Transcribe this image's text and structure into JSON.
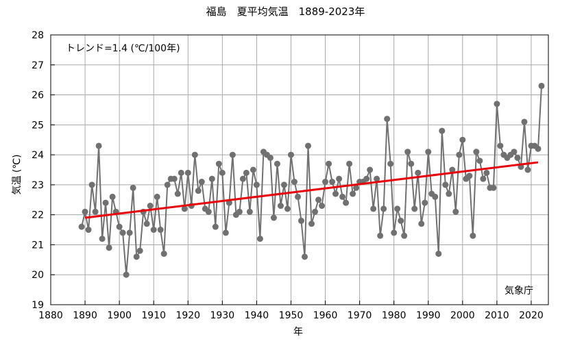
{
  "chart_data": {
    "type": "line",
    "title": "福島　夏平均気温　1889-2023年",
    "xlabel": "年",
    "ylabel": "気温 (℃)",
    "annotation": "トレンド=1.4 (℃/100年)",
    "source": "気象庁",
    "xlim": [
      1880,
      2025
    ],
    "ylim": [
      19,
      28
    ],
    "xticks": [
      1880,
      1890,
      1900,
      1910,
      1920,
      1930,
      1940,
      1950,
      1960,
      1970,
      1980,
      1990,
      2000,
      2010,
      2020
    ],
    "yticks": [
      19,
      20,
      21,
      22,
      23,
      24,
      25,
      26,
      27,
      28
    ],
    "grid": true,
    "series": [
      {
        "color": "#707070",
        "x": [
          1889,
          1890,
          1891,
          1892,
          1893,
          1894,
          1895,
          1896,
          1897,
          1898,
          1899,
          1900,
          1901,
          1902,
          1903,
          1904,
          1905,
          1906,
          1907,
          1908,
          1909,
          1910,
          1911,
          1912,
          1913,
          1914,
          1915,
          1916,
          1917,
          1918,
          1919,
          1920,
          1921,
          1922,
          1923,
          1924,
          1925,
          1926,
          1927,
          1928,
          1929,
          1930,
          1931,
          1932,
          1933,
          1934,
          1935,
          1936,
          1937,
          1938,
          1939,
          1940,
          1941,
          1942,
          1943,
          1944,
          1945,
          1946,
          1947,
          1948,
          1949,
          1950,
          1951,
          1952,
          1953,
          1954,
          1955,
          1956,
          1957,
          1958,
          1959,
          1960,
          1961,
          1962,
          1963,
          1964,
          1965,
          1966,
          1967,
          1968,
          1969,
          1970,
          1971,
          1972,
          1973,
          1974,
          1975,
          1976,
          1977,
          1978,
          1979,
          1980,
          1981,
          1982,
          1983,
          1984,
          1985,
          1986,
          1987,
          1988,
          1989,
          1990,
          1991,
          1992,
          1993,
          1994,
          1995,
          1996,
          1997,
          1998,
          1999,
          2000,
          2001,
          2002,
          2003,
          2004,
          2005,
          2006,
          2007,
          2008,
          2009,
          2010,
          2011,
          2012,
          2013,
          2014,
          2015,
          2016,
          2017,
          2018,
          2019,
          2020,
          2021,
          2022,
          2023
        ],
        "values": [
          21.6,
          22.1,
          21.5,
          23.0,
          22.1,
          24.3,
          21.2,
          22.4,
          20.9,
          22.6,
          22.1,
          21.6,
          21.4,
          20.0,
          21.4,
          22.9,
          20.6,
          20.8,
          22.1,
          21.7,
          22.3,
          21.5,
          22.6,
          21.5,
          20.7,
          23.0,
          23.2,
          23.2,
          22.7,
          23.4,
          22.2,
          23.4,
          22.3,
          24.0,
          22.8,
          23.1,
          22.2,
          22.1,
          23.2,
          21.6,
          23.7,
          23.4,
          21.4,
          22.4,
          24.0,
          22.0,
          22.1,
          23.2,
          23.4,
          22.1,
          23.5,
          23.0,
          21.2,
          24.1,
          24.0,
          23.9,
          21.9,
          23.7,
          22.3,
          23.0,
          22.2,
          24.0,
          23.1,
          22.6,
          21.8,
          20.6,
          24.3,
          21.7,
          22.1,
          22.5,
          22.3,
          23.1,
          23.7,
          23.1,
          22.7,
          23.2,
          22.6,
          22.4,
          23.7,
          22.7,
          22.9,
          23.1,
          23.1,
          23.2,
          23.5,
          22.2,
          23.2,
          21.3,
          22.2,
          25.2,
          23.7,
          21.4,
          22.2,
          21.8,
          21.3,
          24.1,
          23.7,
          22.2,
          23.4,
          21.7,
          22.4,
          24.1,
          22.7,
          22.6,
          20.7,
          24.8,
          23.0,
          22.7,
          23.5,
          22.1,
          24.0,
          24.5,
          23.2,
          23.3,
          21.3,
          24.1,
          23.8,
          23.2,
          23.4,
          22.9,
          22.9,
          25.7,
          24.3,
          24.0,
          23.9,
          24.0,
          24.1,
          23.9,
          23.6,
          25.1,
          23.5,
          24.3,
          24.3,
          24.2,
          26.3
        ]
      },
      {
        "color": "#e8000b",
        "x": [
          1890,
          2022
        ],
        "values": [
          21.9,
          23.75
        ]
      }
    ]
  }
}
